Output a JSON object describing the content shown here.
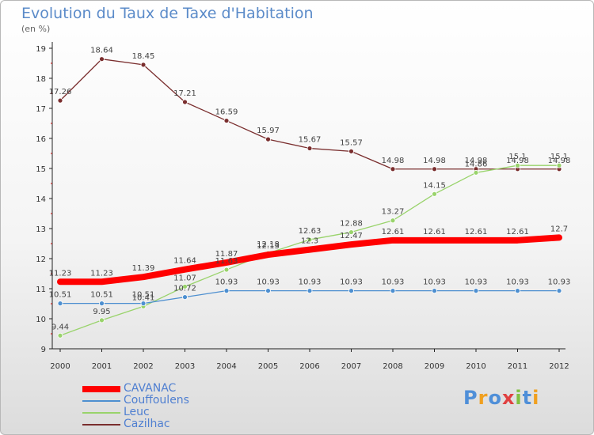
{
  "chart_data": {
    "type": "line",
    "title": "Evolution du Taux de Taxe d'Habitation",
    "subtitle": "(en %)",
    "xlabel": "",
    "ylabel": "",
    "x": [
      "2000",
      "2001",
      "2002",
      "2003",
      "2004",
      "2005",
      "2006",
      "2007",
      "2008",
      "2009",
      "2010",
      "2011",
      "2012"
    ],
    "ylim": [
      9,
      19
    ],
    "yticks": [
      "9",
      "10",
      "11",
      "12",
      "13",
      "14",
      "15",
      "16",
      "17",
      "18",
      "19"
    ],
    "grid": false,
    "legend_position": "bottom-left",
    "series": [
      {
        "name": "CAVANAC",
        "color": "#ff0000",
        "values": [
          11.23,
          11.23,
          11.39,
          11.64,
          11.87,
          12.13,
          12.3,
          12.47,
          12.61,
          12.61,
          12.61,
          12.61,
          12.7
        ],
        "labels": [
          "11.23",
          "11.23",
          "11.39",
          "11.64",
          "11.87",
          "12.13",
          "12.3",
          "12.47",
          "12.61",
          "12.61",
          "12.61",
          "12.61",
          "12.7"
        ]
      },
      {
        "name": "Couffoulens",
        "color": "#4d8fd0",
        "values": [
          10.51,
          10.51,
          10.51,
          10.72,
          10.93,
          10.93,
          10.93,
          10.93,
          10.93,
          10.93,
          10.93,
          10.93,
          10.93
        ],
        "labels": [
          "10.51",
          "10.51",
          "10.51",
          "10.72",
          "10.93",
          "10.93",
          "10.93",
          "10.93",
          "10.93",
          "10.93",
          "10.93",
          "10.93",
          "10.93"
        ]
      },
      {
        "name": "Leuc",
        "color": "#99d36b",
        "values": [
          9.44,
          9.95,
          10.41,
          11.07,
          11.63,
          12.18,
          12.63,
          12.88,
          13.27,
          14.15,
          14.86,
          15.1,
          15.1
        ],
        "labels": [
          "9.44",
          "9.95",
          "10.41",
          "11.07",
          "11.63",
          "12.18",
          "12.63",
          "12.88",
          "13.27",
          "14.15",
          "14.86",
          "15.1",
          "15.1"
        ]
      },
      {
        "name": "Cazilhac",
        "color": "#7a2e2e",
        "values": [
          17.26,
          18.64,
          18.45,
          17.21,
          16.59,
          15.97,
          15.67,
          15.57,
          14.98,
          14.98,
          14.98,
          14.98,
          14.98
        ],
        "labels": [
          "17.26",
          "18.64",
          "18.45",
          "17.21",
          "16.59",
          "15.97",
          "15.67",
          "15.57",
          "14.98",
          "14.98",
          "14.98",
          "14.98",
          "14.98"
        ]
      }
    ]
  },
  "brand": {
    "text": "Proxiti",
    "colors": [
      "#4f8fd8",
      "#f0a020",
      "#4f8fd8",
      "#e04040",
      "#80c040",
      "#4f8fd8",
      "#f0a020"
    ]
  }
}
